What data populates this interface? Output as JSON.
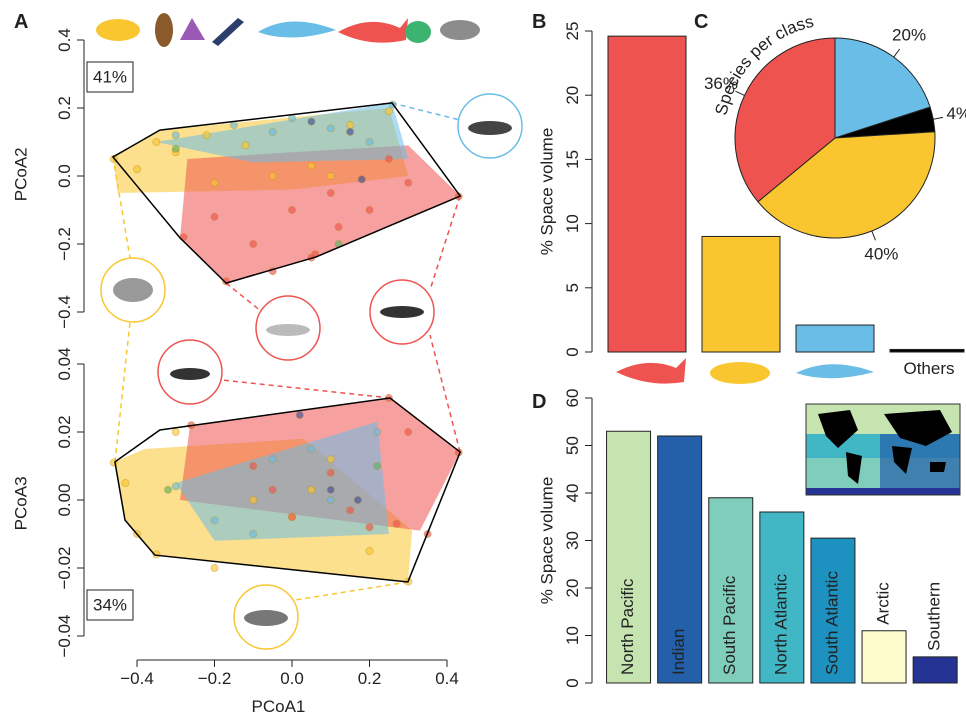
{
  "chart_data": [
    {
      "type": "scatter",
      "panel": "A",
      "annotation": "41%",
      "ylabel": "PCoA2",
      "xlim": [
        -0.52,
        0.45
      ],
      "ylim": [
        -0.42,
        0.43
      ],
      "yticks": [
        {
          "value": -0.4,
          "label": "−0.4"
        },
        {
          "value": -0.2,
          "label": "−0.2"
        },
        {
          "value": 0,
          "label": "0.0"
        },
        0.2,
        0.4
      ],
      "hulls": [
        {
          "fill": "#f9c630",
          "x": [
            -0.462,
            -0.341,
            0.25,
            0.3,
            0.0,
            -0.45
          ],
          "y": [
            0.056,
            0.135,
            0.2,
            0.0,
            -0.04,
            -0.05
          ]
        },
        {
          "fill": "#ef5350",
          "x": [
            -0.27,
            0.0,
            0.3,
            0.434,
            0.062,
            -0.17,
            -0.289
          ],
          "y": [
            0.05,
            0.07,
            0.09,
            -0.059,
            -0.238,
            -0.315,
            -0.182
          ]
        },
        {
          "fill": "#69bde6",
          "x": [
            -0.35,
            0.258,
            0.3,
            -0.1
          ],
          "y": [
            0.1,
            0.215,
            0.05,
            0.04
          ]
        },
        {
          "stroke": "#000000",
          "x": [
            -0.462,
            -0.341,
            0.258,
            0.434,
            0.062,
            -0.17,
            -0.289
          ],
          "y": [
            0.056,
            0.135,
            0.215,
            -0.059,
            -0.238,
            -0.315,
            -0.182
          ]
        }
      ],
      "series": [
        {
          "color": "#f9c630",
          "x": [
            -0.46,
            -0.4,
            -0.35,
            -0.3,
            -0.22,
            -0.12,
            -0.05,
            0.05,
            0.15,
            0.25,
            0.1,
            -0.2
          ],
          "y": [
            0.05,
            0.02,
            0.1,
            0.07,
            0.12,
            0.09,
            0.0,
            0.03,
            0.15,
            0.19,
            0.0,
            -0.02
          ]
        },
        {
          "color": "#ef5350",
          "x": [
            -0.28,
            -0.2,
            -0.1,
            0.0,
            0.05,
            0.1,
            0.2,
            0.3,
            0.43,
            0.12,
            -0.17,
            0.06,
            0.25,
            -0.05
          ],
          "y": [
            -0.18,
            -0.12,
            -0.2,
            -0.1,
            -0.24,
            -0.05,
            -0.1,
            -0.02,
            -0.06,
            -0.15,
            -0.31,
            -0.23,
            0.05,
            -0.28
          ]
        },
        {
          "color": "#69bde6",
          "x": [
            -0.3,
            -0.15,
            0.0,
            0.1,
            0.26,
            0.2,
            -0.05
          ],
          "y": [
            0.12,
            0.15,
            0.17,
            0.14,
            0.21,
            0.1,
            0.13
          ]
        },
        {
          "color": "#3d4fa0",
          "x": [
            0.05,
            0.15,
            0.18
          ],
          "y": [
            0.16,
            0.13,
            -0.01
          ]
        },
        {
          "color": "#59b36b",
          "x": [
            -0.3,
            0.12
          ],
          "y": [
            0.08,
            -0.2
          ]
        }
      ]
    },
    {
      "type": "scatter",
      "annotation": "34%",
      "xlabel": "PCoA1",
      "ylabel": "PCoA3",
      "xlim": [
        -0.52,
        0.45
      ],
      "ylim": [
        -0.045,
        0.043
      ],
      "xticks": [
        {
          "value": -0.4,
          "label": "−0.4"
        },
        {
          "value": -0.2,
          "label": "−0.2"
        },
        {
          "value": 0,
          "label": "0.0"
        },
        0.2,
        0.4
      ],
      "yticks": [
        {
          "value": -0.04,
          "label": "−0.04"
        },
        {
          "value": -0.02,
          "label": "−0.02"
        },
        {
          "value": 0,
          "label": "0.00"
        },
        0.02,
        0.04
      ],
      "hulls": [
        {
          "fill": "#f9c630",
          "x": [
            -0.457,
            -0.38,
            0.03,
            0.31,
            0.299,
            -0.354,
            -0.431
          ],
          "y": [
            0.0112,
            0.015,
            0.018,
            -0.009,
            -0.0241,
            -0.0162,
            -0.0059
          ]
        },
        {
          "fill": "#ef5350",
          "x": [
            -0.263,
            0.253,
            0.434,
            0.33,
            -0.289
          ],
          "y": [
            0.022,
            0.03,
            0.0141,
            -0.009,
            0.0
          ]
        },
        {
          "fill": "#69bde6",
          "x": [
            -0.3,
            0.22,
            0.25,
            -0.2
          ],
          "y": [
            0.005,
            0.023,
            -0.01,
            -0.012
          ]
        },
        {
          "stroke": "#000000",
          "x": [
            -0.457,
            -0.341,
            0.253,
            0.434,
            0.299,
            -0.354,
            -0.431
          ],
          "y": [
            0.0112,
            0.0206,
            0.03,
            0.0141,
            -0.0241,
            -0.0162,
            -0.0059
          ]
        }
      ],
      "series": [
        {
          "color": "#f9c630",
          "x": [
            -0.46,
            -0.43,
            -0.4,
            -0.35,
            -0.3,
            -0.2,
            -0.1,
            0.0,
            0.1,
            0.2,
            0.3,
            0.05
          ],
          "y": [
            0.011,
            0.005,
            -0.01,
            -0.016,
            0.02,
            -0.02,
            0.0,
            -0.005,
            0.012,
            -0.015,
            -0.024,
            0.003
          ]
        },
        {
          "color": "#ef5350",
          "x": [
            -0.26,
            -0.1,
            0.0,
            0.1,
            0.2,
            0.25,
            0.3,
            0.43,
            0.35,
            -0.05,
            0.15,
            0.27
          ],
          "y": [
            0.022,
            0.01,
            -0.005,
            0.008,
            -0.008,
            0.03,
            0.02,
            0.014,
            -0.01,
            0.003,
            -0.003,
            -0.007
          ]
        },
        {
          "color": "#69bde6",
          "x": [
            -0.3,
            -0.2,
            -0.05,
            0.1,
            0.22,
            -0.1,
            0.05
          ],
          "y": [
            0.004,
            -0.006,
            0.012,
            0.0,
            0.02,
            -0.01,
            0.015
          ]
        },
        {
          "color": "#3d4fa0",
          "x": [
            0.1,
            0.17,
            0.02
          ],
          "y": [
            0.003,
            0.0,
            0.025
          ]
        },
        {
          "color": "#59b36b",
          "x": [
            -0.32,
            0.22
          ],
          "y": [
            0.003,
            0.01
          ]
        }
      ]
    },
    {
      "type": "bar",
      "panel": "B",
      "ylabel": "% Space volume",
      "categories": [
        null,
        null,
        null,
        "Others"
      ],
      "values": [
        24.6,
        9,
        2.1,
        0.2
      ],
      "colors": [
        "#ef5350",
        "#f9c630",
        "#69bde6",
        "#000000"
      ],
      "ylim": [
        0,
        25
      ],
      "yticks": [
        0,
        5,
        10,
        15,
        20,
        25
      ]
    },
    {
      "type": "pie",
      "panel": "C",
      "title": "Species per class",
      "values": [
        20,
        4,
        40,
        36
      ],
      "value_labels": [
        "20%",
        "4%",
        "40%",
        "36%"
      ],
      "colors": [
        "#69bde6",
        "#000000",
        "#f9c630",
        "#ef5350"
      ]
    },
    {
      "type": "bar",
      "panel": "D",
      "ylabel": "% Space volume",
      "categories": [
        "North Pacific",
        "Indian",
        "South Pacific",
        "North Atlantic",
        "South Atlantic",
        "Arctic",
        "Southern"
      ],
      "values": [
        53,
        52,
        39,
        36,
        30.5,
        11,
        5.5
      ],
      "colors": [
        "#c5e4b0",
        "#2460a9",
        "#7fcdbb",
        "#41b6c4",
        "#1d91c0",
        "#fdfbcc",
        "#253494"
      ],
      "ylim": [
        0,
        60
      ],
      "yticks": [
        0,
        10,
        20,
        30,
        40,
        50,
        60
      ]
    }
  ]
}
